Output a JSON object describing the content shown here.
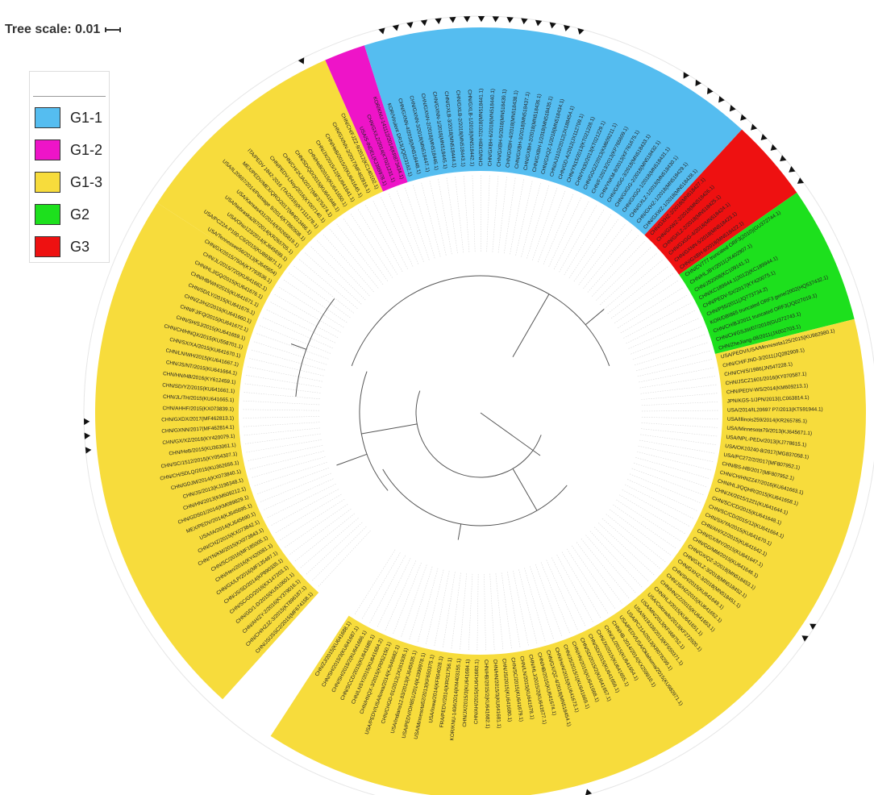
{
  "tree_scale": {
    "label": "Tree scale: 0.01"
  },
  "colors": {
    "G1-1": "#55bdf0",
    "G1-2": "#ee14c8",
    "G1-3": "#f7dc3c",
    "G2": "#1de01d",
    "G3": "#ee1111",
    "branch": "#555555",
    "marker": "#111111"
  },
  "legend": [
    {
      "label": "G1-1",
      "color": "#55bdf0"
    },
    {
      "label": "G1-2",
      "color": "#ee14c8"
    },
    {
      "label": "G1-3",
      "color": "#f7dc3c"
    },
    {
      "label": "G2",
      "color": "#1de01d"
    },
    {
      "label": "G3",
      "color": "#ee1111"
    }
  ],
  "clades": [
    {
      "group": "G1-3",
      "leaves": [
        "CHN/JS/JSSC2/2015(MF674158.1)",
        "CHN/CH/HZJZ-3/2015(KT896187.1)",
        "CHN/AH/ZY-2/2016(KY379016.1)",
        "CHN/GD/1-D/2015(KU510601.1)",
        "CHN/SC/GD/2016(KX147203.1)",
        "CHN/JS/SD/2014(KP890335.1)",
        "CHN/GX/LP/2016(MF135487.1)",
        "CHN/Hen/2016(KY420081.1)",
        "CHN/SC/2016(MF185005.1)",
        "CHN/YN/KM/2015(KX073843.1)",
        "CHN/CHZ/2015(KX073842.1)",
        "USA/IA/2014(KJ645690.1)",
        "MEX/PEDV/2014(KJ645695.1)",
        "CHN/GDS01/2014(KM089829.1)",
        "CHN/HN/2013(KM609212.1)",
        "CHN/JS/2013(KJ196348.1)",
        "CHN/GDJM/2014(KX073840.1)",
        "CHN/CH/SDLQ/2015(KU362656.1)",
        "CHN/SC/1512/2015(KY054307.1)",
        "CHN/HeB/2015(KU363061.1)",
        "CHN/GX/XZ/2016(KY420079.1)",
        "CHN/GXNN/2017(MF462814.1)",
        "CHN/GXDX/2017(MF462813.1)",
        "CHN/AHHF/2015(KX073839.1)",
        "CHN/JL/TH/2015(KU641665.1)",
        "CHN/SD/YZ/2015(KU641661.1)",
        "CHN/HN/HB/2016(KY612459.1)",
        "CHN/JS/NT/2015(KU641664.1)",
        "CHN/LN/WH/2015(KU641667.1)",
        "CHN/SX/XA/2015(KU641670.1)",
        "CHN/CH/HNQX/2015(KU558701.1)",
        "CHN/SH/SJ/2015(KU641659.1)",
        "CHN/FJ/FQ/2015(KU641672.1)",
        "CHN/ZJ/HZ/2015(KU641660.1)",
        "CHN/SD/LY/2015(KU641675.1)",
        "CHN/HB/WH/2015(KU641671.1)",
        "CHN/HLJ/GQ/2015(KU641676.1)",
        "CHN/JL/2015/720(KU641662.1)",
        "CHN/GX/2015/750A(KY793536.1)"
      ]
    },
    {
      "group": "G1-3",
      "leaves": [
        "USA/Tennessee56/2013(KJ645654)",
        "USA/PC22A-P100-C6/2015(KU893871.1)",
        "USA/Ohio123/2014(KJ645699.1)",
        "USA/Nebraska287/2014(KR265705.1)",
        "USA/Kansas431/2014(KR265819.1)",
        "USA/IL20697/2014/Passage 9/2014(KT860508.1)",
        "MEX/PEDV/MEX/QRO/2017(MH013466.1)",
        "ITA/PEDV 1842-2016 (TA/2016)(KY111278.1)",
        "CHN/PEDV-LNsy/2016(KY007140.1)",
        "CHN/CH/JXJA/2017(MF375374.1)",
        "CHN/SD/QD/2015(KU641648.1)",
        "CHN/HeB/2015(KU641650.1)",
        "CHN/JX/2015/12(KU641641.1)",
        "CHN/HeB/2015/2(KU641645.1)",
        "CHN/GX/NN-2/2017(MF462816.1)",
        "CHN/CH/FJZZ-9/2012(KC140102.1)"
      ]
    },
    {
      "group": "G1-2",
      "leaves": [
        "USA/S-INDEL(KJ399978.1)",
        "CHN/GX/LZ/2014(KT021231.1)",
        "KOR/KNU-141112/2014(KR873434.1)"
      ]
    },
    {
      "group": "G1-1",
      "leaves": [
        "KOR/Virulent DR13(JQ023162.1)",
        "CHN/GXNN-4/2018(MN518448.1)",
        "CHN/GXNN-3/2018(MN518447.1)",
        "CHN/GXNN-2/2018(MN518446.1)",
        "CHN/GXNN-1/2018(MN518445.1)",
        "CHN/GXLB-3/2018(MN518444.1)",
        "CHN/GXLB-2/2018(MN518443.1)",
        "CHN/GXLB-1/2018(MN518442.1)",
        "CHN/GXBH-7/2018(MN518441.1)",
        "CHN/GXBH-6/2018(MN518440.1)",
        "CHN/GXBH-5/2018(MN518439.1)",
        "CHN/GXBH-4/2018(MN518438.1)",
        "CHN/GXBH-3/2018(MN518437.1)",
        "CHN/GXBH-2/2018(MN518436.1)",
        "CHN/GXBH-1/2018(MN518435.1)",
        "CHN/GXQZ-1/2018(MN518434.1)",
        "CHN/AJ1102/2012(JX188454.1)",
        "CHN/GD-A/2012(JX112709.1)",
        "CHN/YN15/2013(KT021228.1)",
        "CHN/YN30/2013(KT021229.1)",
        "CHN/GDGZ/2013(KM609211.1)",
        "CHN/FJ2013/2013(KP765609.1)",
        "CHN/YNKM-8/2013(KF761675.1)",
        "CHN/GXGG-3/2018(MN518433.1)",
        "CHN/GXGG-2/2018(MN518432.1)",
        "CHN/GXGG-1/2018(MN518431.1)",
        "CHN/GXLZ-1/2018(MN518430.1)",
        "CHN/GXHZ-1/2018(MN518429.1)",
        "CHN/GXWZ-1/2018(MN518428.1)"
      ]
    },
    {
      "group": "G3",
      "leaves": [
        "CHN/GXHZ-2/2018(MN518427.1)",
        "CHN/GXWZ-2/2018(MN518426.1)",
        "CHN/GXLZ-2/2018(MN518425.1)",
        "CHN/GXGG-4/2018(MN518424.1)",
        "CHN/GXNN-5/2018(MN518423.1)",
        "CHN/GXBH-8/2018(MN518422.1)"
      ]
    },
    {
      "group": "G2",
      "leaves": [
        "CHN/CV777 truncated ORF3(2010)(GU372744.1)",
        "CHN/HLJBY/2011(JX402907.1)",
        "CHN/JS2008(KC109141.1)",
        "CHN/KC189944.1(2012)(KC189944.1)",
        "CHN/PEDV-SX/2017(KY420075.1)",
        "CHN/P55/2011(JQ773734.2)",
        "KOR/DBI865 truncated ORF3 gene/2002(HQ537432.1)",
        "CHN/CH/BJ/2011 truncated ORF3(JQ027019.1)",
        "CHN/CH/GSJIII/07/2010(GU372743.1)",
        "CHN/ZheJiang-08/2011(JX002703.1)"
      ]
    },
    {
      "group": "G1-3",
      "leaves": [
        "USA/PEDV/USA/Minnesota125/2015(KU982980.1)",
        "CHN/CH/FJND-3/2011(JQ282909.1)",
        "CHN/CH/S/1986(JN547228.1)",
        "CHN/JSCZ1601/2016(KY070587.1)",
        "CHN/PEDV-WS/2014(KM609213.1)",
        "JPN/KGS-1/JPN/2013(LC063814.1)",
        "USA/2014/IL20697 P7/2013(KT591944.1)",
        "USA/Illinois259/2014(KR265785.1)",
        "USA/Minnesota79/2013(KJ645671.1)",
        "USA/NPL-PEDv/2013(KJ778615.1)",
        "USA/OK10240-8/2017(MG837058.1)",
        "USA/PC272/2/2017(MF807952.1)",
        "CHN/BS-HB/2017(MF807952.1)",
        "CHN/CH/HNZZ47/2016(KU641663.1)",
        "CHN/HLJ/QQHR/2015(KU641658.1)",
        "CHN/JX/2015/1221(KU641644.1)",
        "CHN/SC/CD/2015(KU641648.1)",
        "CHN/SC/CD/2015/12(KU641664.1)",
        "CHN/SX/YA/2015(KU641670.1)",
        "CHN/AH/XZ/2015(KU641642.1)",
        "CHN/GX/MY/2015(KU641647.1)",
        "CHN/GD/MM/2015(KU641646.1)",
        "CHN/GX/QZ-2/2018(MN518453.1)",
        "CHN/GXLZ-3/2018(MN518452.1)",
        "CHN/GXHZ-3/2018(MN518451.1)",
        "CHN/SH/2015(KU641649.1)",
        "CHN/JS/HZ/2015(KU641652.1)",
        "CHN/HN/ZZ/2015(KU641653.1)",
        "CHN/HLJ/2015(KU641651.1)",
        "USA/Colorado/2013(KF272920.1)",
        "USA/MN/2013(KF468752.1)",
        "USA/IN19338/2013(KF650371.1)",
        "USA/PC21A/2013(KR078299.1)",
        "USA/PEDV/USA/Oklahoma/2015(KU982971.1)",
        "CHN/HB-2014/2014(KX259910.1)",
        "CHN/JL/2015(KU641654.1)",
        "CHN/JX/2015(KU641655.1)",
        "CHN/SD/2015(KU641656.1)",
        "CHN/SD/2015/2(KU641657.1)",
        "CHN/HN/2015(KU641668.1)",
        "CHN/JS/2015/1(KU641669.1)",
        "CHN/HeN/2015(KU641673.1)",
        "CHN/GX/QZ-4/2018(MN518454.1)",
        "CHN/HB/2015(KU641674.1)",
        "CHN/HLJ/2015/2(KU641677.1)",
        "CHN/LN/2015(KU641678.1)",
        "CHN/SC/2015(KU641679.1)",
        "CHN/JS/2015(KU641680.1)",
        "CHN/HN/2015/3(KU641681.1)",
        "CHN/HB/2015/2(KU641682.1)",
        "CHN/AH/2015(KU641683.1)",
        "CHN/JX/2015/3(KU641684.1)",
        "KOR/KNU-1406/2014(KM403155.1)",
        "FRA/PEDV/2014(KR011756.1)",
        "USA/Iowa/2014(KF804028.1)",
        "USA/Minnesota52/2013(KF650375.1)",
        "USA/PEDV/OH851/2014(KJ399978.1)",
        "USA/Indiana12.83/2013(KJ645635.1)",
        "CHN/CHGD-01/2012(JX261936.1)",
        "USA/PEDV/USA/Iowa/2014(KJ645682.1)",
        "CHN/HNQX-3/2015(KR052150.1)",
        "CHN/LNSY/2015(KU641684.2)",
        "CHN/SCCD/2015(KU641685.1)",
        "CHN/SH/2015/2(KU641686.1)",
        "CHN/SH/2015/3(KU641687.1)",
        "CHN/ZJ/2015(KU641688.1)"
      ]
    }
  ],
  "markers": [
    "CHN/GXWZ-1/2018(MN518428.1)",
    "CHN/GXHZ-1/2018(MN518429.1)",
    "CHN/GXLZ-1/2018(MN518430.1)",
    "CHN/GXGG-1/2018(MN518431.1)",
    "CHN/GXGG-2/2018(MN518432.1)",
    "CHN/GXGG-3/2018(MN518433.1)",
    "CHN/GXQZ-1/2018(MN518434.1)",
    "CHN/GXBH-1/2018(MN518435.1)",
    "CHN/GXBH-2/2018(MN518436.1)",
    "CHN/GXBH-3/2018(MN518437.1)",
    "CHN/GXBH-4/2018(MN518438.1)",
    "CHN/GXBH-5/2018(MN518439.1)",
    "CHN/GXBH-6/2018(MN518440.1)",
    "CHN/GXBH-7/2018(MN518441.1)",
    "CHN/GXLB-1/2018(MN518442.1)",
    "CHN/GXLB-2/2018(MN518443.1)",
    "CHN/GXLB-3/2018(MN518444.1)",
    "CHN/GXNN-1/2018(MN518445.1)",
    "CHN/GXNN-2/2018(MN518446.1)",
    "CHN/GXNN-3/2018(MN518447.1)",
    "CHN/GXNN-4/2018(MN518448.1)",
    "CHN/GXHZ-2/2018(MN518427.1)",
    "CHN/GXWZ-2/2018(MN518426.1)",
    "CHN/GXLZ-2/2018(MN518425.1)",
    "CHN/GXGG-4/2018(MN518424.1)",
    "CHN/GXNN-5/2018(MN518423.1)",
    "CHN/GXBH-8/2018(MN518422.1)",
    "CHN/GX/QZ-2/2018(MN518453.1)",
    "CHN/GXLZ-3/2018(MN518452.1)",
    "CHN/GX/QZ-4/2018(MN518454.1)",
    "CHN/GX/NN-2/2017(MF462816.1)",
    "CHN/GXNN/2017(MF462814.1)",
    "CHN/GXDX/2017(MF462813.1)",
    "CHN/GX/XZ/2016(KY420079.1)"
  ]
}
